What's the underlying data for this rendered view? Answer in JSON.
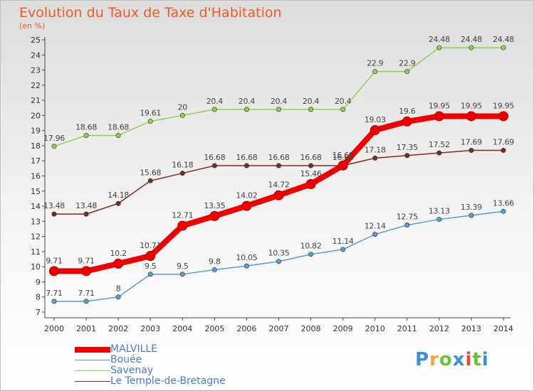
{
  "page": {
    "title": "Evolution du Taux de Taxe d'Habitation",
    "subtitle": "(en %)"
  },
  "brand": {
    "letters": [
      {
        "char": "P",
        "color": "#3a8fd6"
      },
      {
        "char": "r",
        "color": "#f2a33a"
      },
      {
        "char": "o",
        "color": "#6cbf3f"
      },
      {
        "char": "x",
        "color": "#3a8fd6"
      },
      {
        "char": "i",
        "color": "#e8453c"
      },
      {
        "char": "t",
        "color": "#6cbf3f"
      },
      {
        "char": "i",
        "color": "#3a8fd6"
      }
    ]
  },
  "chart_data": {
    "type": "line",
    "title": "Evolution du Taux de Taxe d'Habitation",
    "subtitle": "(en %)",
    "xlabel": "",
    "ylabel": "",
    "x": [
      "2000",
      "2001",
      "2002",
      "2003",
      "2004",
      "2005",
      "2006",
      "2007",
      "2008",
      "2009",
      "2010",
      "2011",
      "2012",
      "2013",
      "2014"
    ],
    "ylim": [
      7,
      25
    ],
    "yticks": [
      7,
      8,
      9,
      10,
      11,
      12,
      13,
      14,
      15,
      16,
      17,
      18,
      19,
      20,
      21,
      22,
      23,
      24,
      25
    ],
    "grid": false,
    "legend_position": "bottom-left",
    "series": [
      {
        "name": "MALVILLE",
        "color": "#ee0000",
        "highlight": true,
        "values": [
          9.71,
          9.71,
          10.2,
          10.71,
          12.71,
          13.35,
          14.02,
          14.72,
          15.46,
          16.69,
          19.03,
          19.6,
          19.95,
          19.95,
          19.95
        ],
        "labels": [
          "9.71",
          "9.71",
          "10.2",
          "10.71",
          "12.71",
          "13.35",
          "14.02",
          "14.72",
          "15.46",
          "16.69",
          "19.03",
          "19.6",
          "19.95",
          "19.95",
          "19.95"
        ]
      },
      {
        "name": "Bouée",
        "color": "#5b9bd5",
        "highlight": false,
        "values": [
          7.71,
          7.71,
          8,
          9.5,
          9.5,
          9.8,
          10.05,
          10.35,
          10.82,
          11.14,
          12.14,
          12.75,
          13.13,
          13.39,
          13.66
        ],
        "labels": [
          "7.71",
          "7.71",
          "8",
          "9.5",
          "9.5",
          "9.8",
          "10.05",
          "10.35",
          "10.82",
          "11.14",
          "12.14",
          "12.75",
          "13.13",
          "13.39",
          "13.66"
        ]
      },
      {
        "name": "Savenay",
        "color": "#8fd14f",
        "highlight": false,
        "values": [
          17.96,
          18.68,
          18.68,
          19.61,
          20,
          20.4,
          20.4,
          20.4,
          20.4,
          20.4,
          22.9,
          22.9,
          24.48,
          24.48,
          24.48
        ],
        "labels": [
          "17.96",
          "18.68",
          "18.68",
          "19.61",
          "20",
          "20.4",
          "20.4",
          "20.4",
          "20.4",
          "20.4",
          "22.9",
          "22.9",
          "24.48",
          "24.48",
          "24.48"
        ]
      },
      {
        "name": "Le Temple-de-Bretagne",
        "color": "#7a2a2a",
        "highlight": false,
        "values": [
          13.48,
          13.48,
          14.18,
          15.68,
          16.18,
          16.68,
          16.68,
          16.68,
          16.68,
          16.68,
          17.18,
          17.35,
          17.52,
          17.69,
          17.69
        ],
        "labels": [
          "13.48",
          "13.48",
          "14.18",
          "15.68",
          "16.18",
          "16.68",
          "16.68",
          "16.68",
          "16.68",
          "16.68",
          "17.18",
          "17.35",
          "17.52",
          "17.69",
          "17.69"
        ]
      }
    ]
  }
}
